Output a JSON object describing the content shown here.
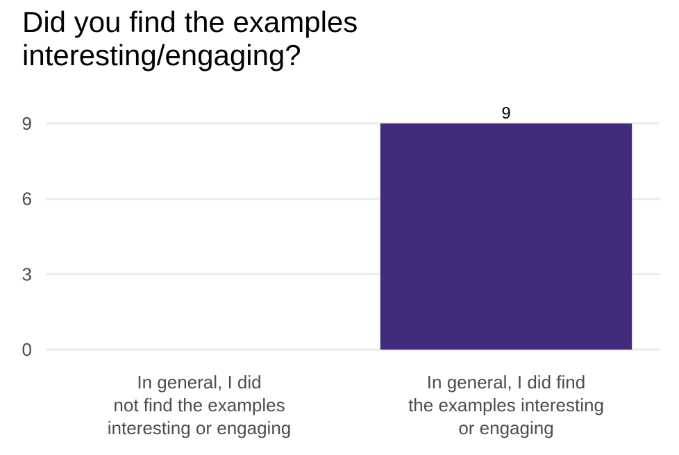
{
  "chart_data": {
    "type": "bar",
    "title": "Did you find the examples interesting/engaging?",
    "title_lines": [
      "Did you find the examples",
      "interesting/engaging?"
    ],
    "categories": [
      "In general, I did not find the examples interesting or engaging",
      "In general, I did find the examples interesting or engaging"
    ],
    "category_lines": [
      [
        "In general, I did",
        "not find the examples",
        "interesting or engaging"
      ],
      [
        "In general, I did find",
        "the examples interesting",
        "or engaging"
      ]
    ],
    "values": [
      0,
      9
    ],
    "data_labels": [
      "",
      "9"
    ],
    "y_ticks": [
      0,
      3,
      6,
      9
    ],
    "ylim": [
      0,
      9
    ],
    "xlabel": "",
    "ylabel": "",
    "grid": true,
    "bar_color": "#3f2a7c",
    "grid_color": "#ebebeb"
  }
}
